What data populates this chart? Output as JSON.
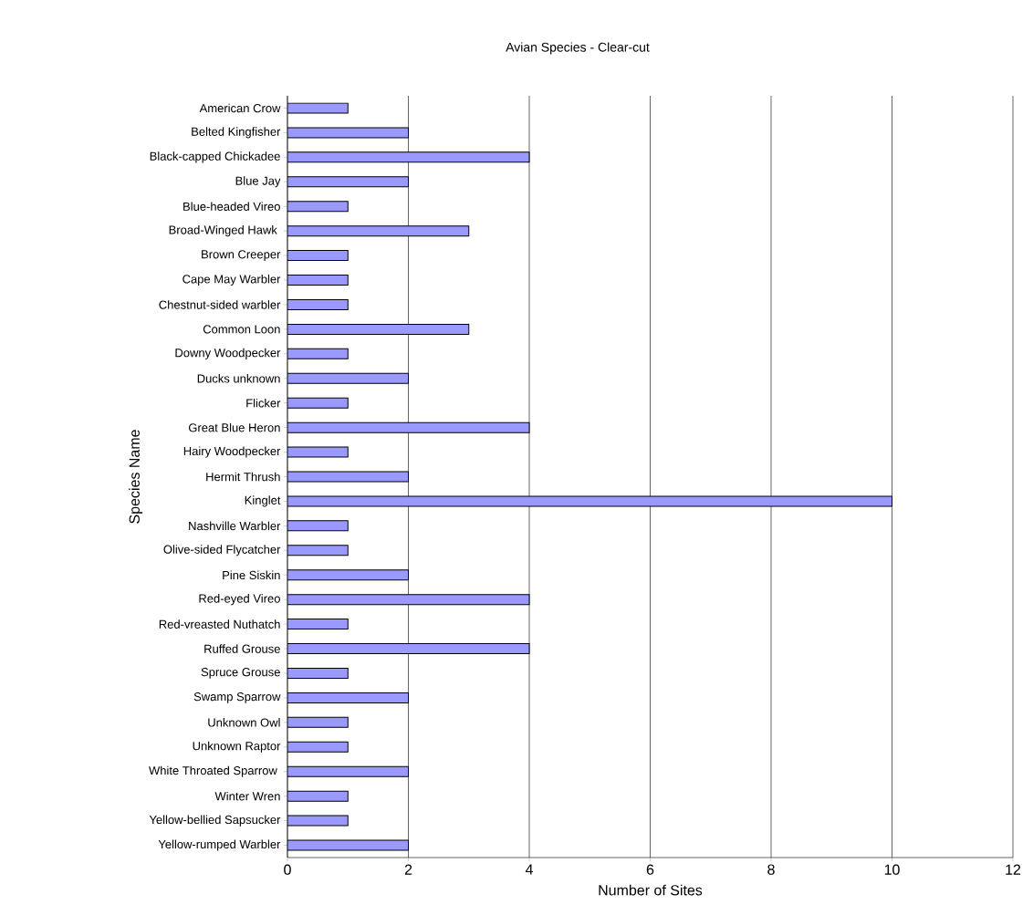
{
  "chart_data": {
    "type": "bar",
    "orientation": "horizontal",
    "title": "Avian Species - Clear-cut",
    "xlabel": "Number of Sites",
    "ylabel": "Species Name",
    "categories": [
      "American Crow",
      "Belted Kingfisher",
      "Black-capped Chickadee",
      "Blue Jay",
      "Blue-headed Vireo",
      "Broad-Winged Hawk ",
      "Brown Creeper",
      "Cape May Warbler",
      "Chestnut-sided warbler",
      "Common Loon",
      "Downy Woodpecker",
      "Ducks unknown",
      "Flicker",
      "Great Blue Heron",
      "Hairy Woodpecker",
      "Hermit Thrush",
      "Kinglet",
      "Nashville Warbler",
      "Olive-sided Flycatcher",
      "Pine Siskin",
      "Red-eyed Vireo",
      "Red-vreasted Nuthatch",
      "Ruffed Grouse",
      "Spruce Grouse",
      "Swamp Sparrow",
      "Unknown Owl",
      "Unknown Raptor",
      "White Throated Sparrow ",
      "Winter Wren",
      "Yellow-bellied Sapsucker",
      "Yellow-rumped Warbler"
    ],
    "values": [
      1,
      2,
      4,
      2,
      1,
      3,
      1,
      1,
      1,
      3,
      1,
      2,
      1,
      4,
      1,
      2,
      10,
      1,
      1,
      2,
      4,
      1,
      4,
      1,
      2,
      1,
      1,
      2,
      1,
      1,
      2
    ],
    "color": "#9999ff",
    "xlim": [
      0,
      12
    ],
    "xticks": [
      0,
      2,
      4,
      6,
      8,
      10,
      12
    ],
    "grid": "x"
  }
}
